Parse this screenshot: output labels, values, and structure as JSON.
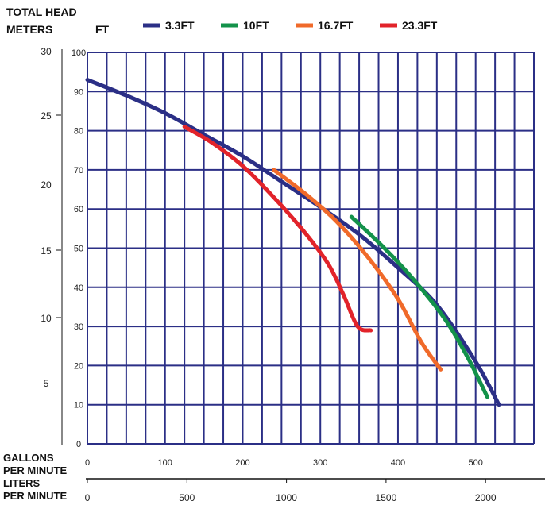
{
  "header": {
    "line1": "TOTAL HEAD",
    "line2_meters": "METERS",
    "line2_ft": "FT"
  },
  "axes": {
    "gpm_title": [
      "GALLONS",
      "PER MINUTE"
    ],
    "lpm_title": [
      "LITERS",
      "PER MINUTE"
    ]
  },
  "chart_data": {
    "type": "line",
    "title": "",
    "ylabel": "TOTAL HEAD FT",
    "ylim": [
      0,
      100
    ],
    "y_ticks": [
      0,
      10,
      20,
      30,
      40,
      50,
      60,
      70,
      80,
      90,
      100
    ],
    "y_meters_ticks": [
      "30",
      "25",
      "20",
      "15",
      "10",
      "5"
    ],
    "xlabel": "GALLONS PER MINUTE",
    "xlim": [
      0,
      575
    ],
    "x_ticks": [
      0,
      100,
      200,
      300,
      400,
      500
    ],
    "x_lpm_ticks": [
      0,
      500,
      1000,
      1500,
      2000
    ],
    "grid": true,
    "legend_position": "top",
    "series": [
      {
        "name": "3.3FT",
        "color": "#2b2f86",
        "x": [
          0,
          50,
          100,
          150,
          200,
          250,
          300,
          350,
          400,
          450,
          500,
          530
        ],
        "y": [
          93,
          89,
          84.5,
          79,
          73.5,
          67,
          60.5,
          53.5,
          45,
          35.5,
          21,
          10
        ]
      },
      {
        "name": "10FT",
        "color": "#13924a",
        "x": [
          340,
          380,
          420,
          460,
          490,
          515
        ],
        "y": [
          58,
          50.5,
          42,
          32,
          22,
          12
        ]
      },
      {
        "name": "16.7FT",
        "color": "#f06a2a",
        "x": [
          240,
          280,
          320,
          360,
          400,
          430,
          455
        ],
        "y": [
          70,
          64,
          57,
          48,
          37,
          26,
          19
        ]
      },
      {
        "name": "23.3FT",
        "color": "#e2232a",
        "x": [
          125,
          160,
          200,
          240,
          280,
          310,
          330,
          348,
          365
        ],
        "y": [
          81,
          77,
          71,
          63,
          54,
          46,
          38,
          30,
          29
        ]
      }
    ]
  }
}
